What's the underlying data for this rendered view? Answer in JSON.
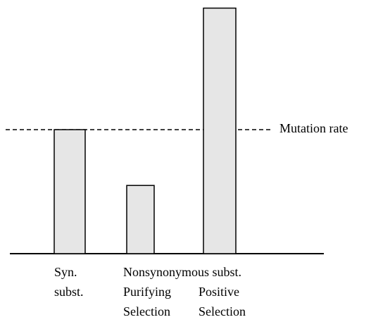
{
  "chart_data": {
    "type": "bar",
    "categories": [
      "Syn. subst.",
      "Purifying Selection",
      "Positive Selection"
    ],
    "group_label": "Nonsynonymous subst.",
    "values": [
      1,
      0.55,
      1.98
    ],
    "color": "#e6e6e6",
    "ylim": [
      0,
      2
    ],
    "reference_line": {
      "value": 1,
      "label": "Mutation rate"
    }
  }
}
